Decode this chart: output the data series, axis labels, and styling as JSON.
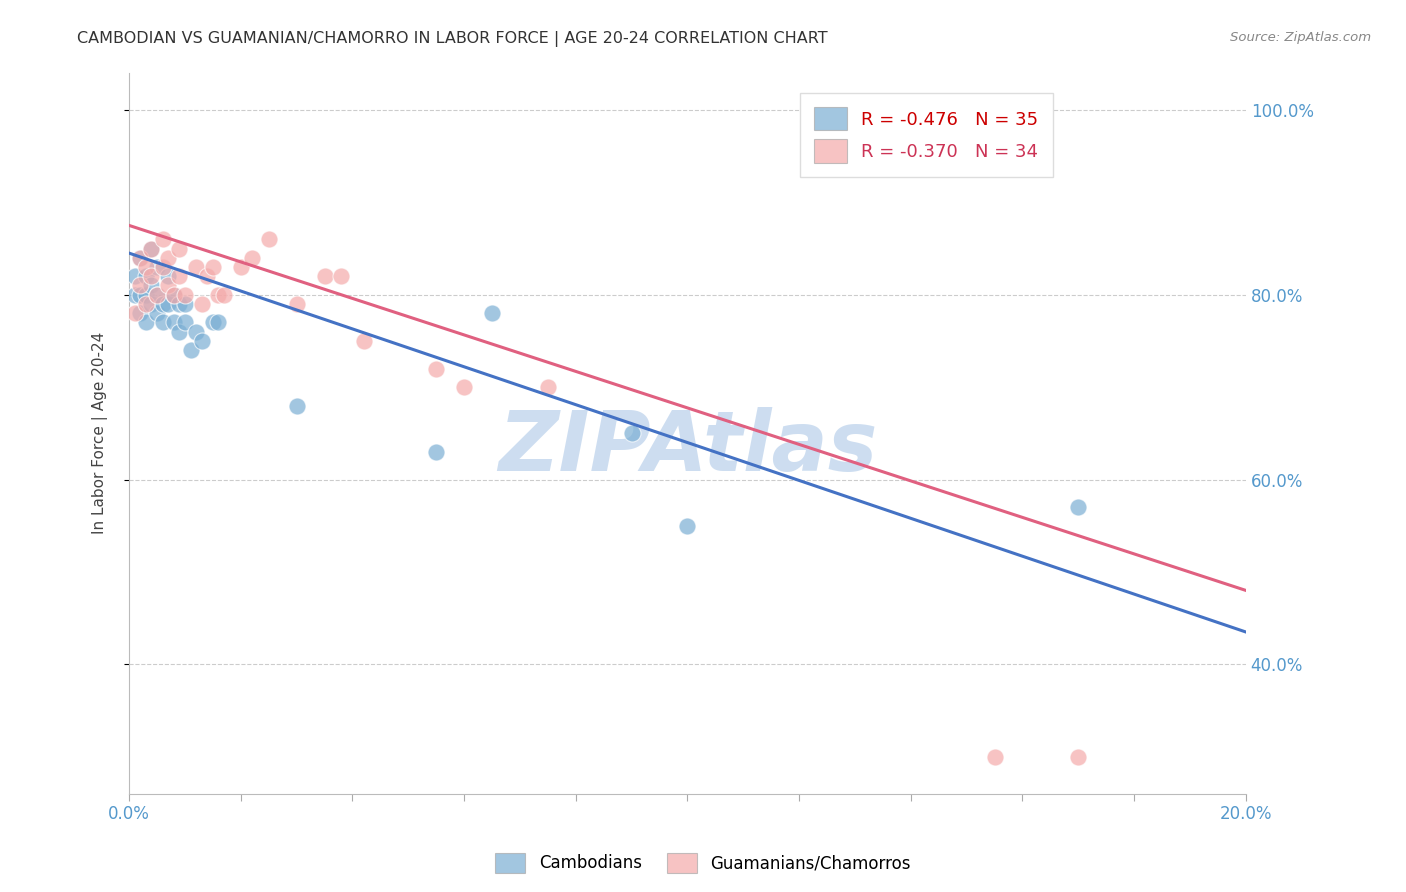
{
  "title": "CAMBODIAN VS GUAMANIAN/CHAMORRO IN LABOR FORCE | AGE 20-24 CORRELATION CHART",
  "source": "Source: ZipAtlas.com",
  "ylabel": "In Labor Force | Age 20-24",
  "xlim": [
    0.0,
    0.2
  ],
  "ylim": [
    0.26,
    1.04
  ],
  "xticks": [
    0.0,
    0.02,
    0.04,
    0.06,
    0.08,
    0.1,
    0.12,
    0.14,
    0.16,
    0.18,
    0.2
  ],
  "yticks": [
    0.4,
    0.6,
    0.8,
    1.0
  ],
  "cambodian_R": -0.476,
  "cambodian_N": 35,
  "guamanian_R": -0.37,
  "guamanian_N": 34,
  "blue_color": "#7BAFD4",
  "pink_color": "#F4AAAA",
  "blue_line_color": "#4472C4",
  "pink_line_color": "#E06080",
  "watermark": "ZIPAtlas",
  "watermark_color": "#C5D8EE",
  "cambodian_x": [
    0.001,
    0.001,
    0.002,
    0.002,
    0.002,
    0.003,
    0.003,
    0.003,
    0.004,
    0.004,
    0.004,
    0.005,
    0.005,
    0.005,
    0.006,
    0.006,
    0.007,
    0.007,
    0.008,
    0.008,
    0.009,
    0.009,
    0.01,
    0.01,
    0.011,
    0.012,
    0.013,
    0.015,
    0.016,
    0.03,
    0.055,
    0.065,
    0.09,
    0.1,
    0.17
  ],
  "cambodian_y": [
    0.8,
    0.82,
    0.78,
    0.8,
    0.84,
    0.77,
    0.8,
    0.82,
    0.79,
    0.81,
    0.85,
    0.78,
    0.8,
    0.83,
    0.77,
    0.79,
    0.79,
    0.82,
    0.77,
    0.8,
    0.76,
    0.79,
    0.77,
    0.79,
    0.74,
    0.76,
    0.75,
    0.77,
    0.77,
    0.68,
    0.63,
    0.78,
    0.65,
    0.55,
    0.57
  ],
  "guamanian_x": [
    0.001,
    0.002,
    0.002,
    0.003,
    0.003,
    0.004,
    0.004,
    0.005,
    0.006,
    0.006,
    0.007,
    0.007,
    0.008,
    0.009,
    0.009,
    0.01,
    0.012,
    0.013,
    0.014,
    0.015,
    0.016,
    0.017,
    0.02,
    0.022,
    0.025,
    0.03,
    0.035,
    0.038,
    0.042,
    0.055,
    0.06,
    0.075,
    0.155,
    0.17
  ],
  "guamanian_y": [
    0.78,
    0.81,
    0.84,
    0.79,
    0.83,
    0.82,
    0.85,
    0.8,
    0.83,
    0.86,
    0.81,
    0.84,
    0.8,
    0.82,
    0.85,
    0.8,
    0.83,
    0.79,
    0.82,
    0.83,
    0.8,
    0.8,
    0.83,
    0.84,
    0.86,
    0.79,
    0.82,
    0.82,
    0.75,
    0.72,
    0.7,
    0.7,
    0.3,
    0.3
  ],
  "background_color": "#FFFFFF",
  "grid_color": "#CCCCCC",
  "legend_blue_R": "R = -0.476",
  "legend_blue_N": "N = 35",
  "legend_pink_R": "R = -0.370",
  "legend_pink_N": "N = 34"
}
